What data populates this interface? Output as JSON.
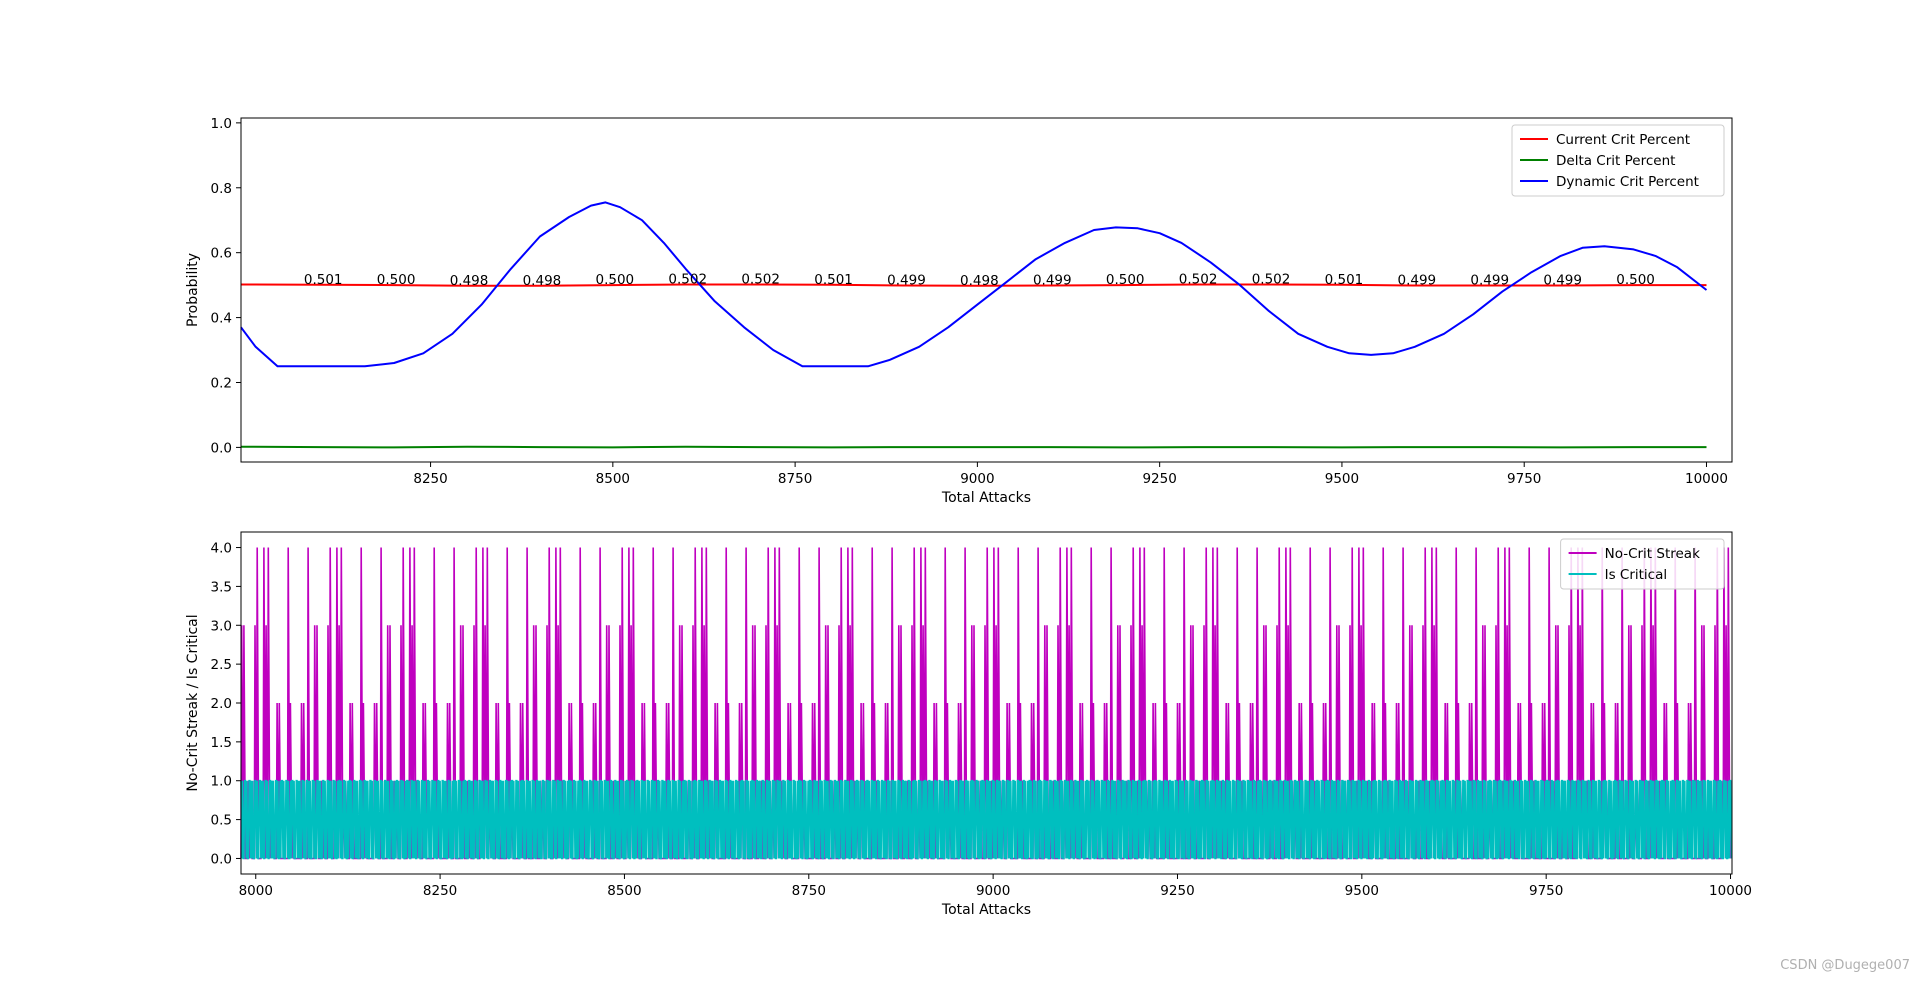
{
  "watermark": "CSDN @Dugege007",
  "chart_data": [
    {
      "type": "line",
      "title": "",
      "xlabel": "Total Attacks",
      "ylabel": "Probability",
      "xlim": [
        7990,
        10035
      ],
      "ylim": [
        -0.045,
        1.015
      ],
      "xticks": [
        8250,
        8500,
        8750,
        9000,
        9250,
        9500,
        9750,
        10000
      ],
      "xtick_labels": [
        "8250",
        "8500",
        "8750",
        "9000",
        "9250",
        "9500",
        "9750",
        "10000"
      ],
      "yticks": [
        0.0,
        0.2,
        0.4,
        0.6,
        0.8,
        1.0
      ],
      "ytick_labels": [
        "0.0",
        "0.2",
        "0.4",
        "0.6",
        "0.8",
        "1.0"
      ],
      "legend_position": "top-right",
      "series": [
        {
          "name": "Current Crit Percent",
          "color": "#ff0000",
          "x": [
            7990,
            8100,
            8200,
            8300,
            8400,
            8500,
            8600,
            8700,
            8800,
            8900,
            9000,
            9100,
            9200,
            9300,
            9400,
            9500,
            9600,
            9700,
            9800,
            9900,
            10000
          ],
          "y": [
            0.502,
            0.501,
            0.5,
            0.498,
            0.498,
            0.5,
            0.502,
            0.502,
            0.501,
            0.499,
            0.498,
            0.499,
            0.5,
            0.502,
            0.502,
            0.501,
            0.499,
            0.499,
            0.499,
            0.5,
            0.5
          ]
        },
        {
          "name": "Delta Crit Percent",
          "color": "#008000",
          "x": [
            7990,
            8100,
            8200,
            8300,
            8400,
            8500,
            8600,
            8700,
            8800,
            8900,
            9000,
            9100,
            9200,
            9300,
            9400,
            9500,
            9600,
            9700,
            9800,
            9900,
            10000
          ],
          "y": [
            0.002,
            0.001,
            0.0,
            0.002,
            0.001,
            0.0,
            0.002,
            0.001,
            0.0,
            0.001,
            0.001,
            0.001,
            0.0,
            0.001,
            0.001,
            0.0,
            0.001,
            0.001,
            0.0,
            0.001,
            0.001
          ]
        },
        {
          "name": "Dynamic Crit Percent",
          "color": "#0000ff",
          "x": [
            7990,
            8010,
            8040,
            8080,
            8120,
            8160,
            8200,
            8240,
            8280,
            8320,
            8360,
            8400,
            8440,
            8470,
            8490,
            8510,
            8540,
            8570,
            8600,
            8640,
            8680,
            8720,
            8760,
            8800,
            8850,
            8880,
            8920,
            8960,
            9000,
            9040,
            9080,
            9120,
            9160,
            9190,
            9220,
            9250,
            9280,
            9320,
            9360,
            9400,
            9440,
            9480,
            9510,
            9540,
            9570,
            9600,
            9640,
            9680,
            9720,
            9760,
            9800,
            9830,
            9860,
            9900,
            9930,
            9960,
            10000
          ],
          "y": [
            0.37,
            0.31,
            0.25,
            0.25,
            0.25,
            0.25,
            0.26,
            0.29,
            0.35,
            0.44,
            0.55,
            0.65,
            0.71,
            0.745,
            0.755,
            0.74,
            0.7,
            0.63,
            0.55,
            0.45,
            0.37,
            0.3,
            0.25,
            0.25,
            0.25,
            0.27,
            0.31,
            0.37,
            0.44,
            0.51,
            0.58,
            0.63,
            0.67,
            0.678,
            0.675,
            0.66,
            0.63,
            0.57,
            0.5,
            0.42,
            0.35,
            0.31,
            0.29,
            0.285,
            0.29,
            0.31,
            0.35,
            0.41,
            0.48,
            0.54,
            0.59,
            0.615,
            0.62,
            0.61,
            0.59,
            0.555,
            0.485
          ]
        }
      ],
      "annotations": [
        {
          "x": 8100,
          "y": 0.501,
          "text": "0.501"
        },
        {
          "x": 8200,
          "y": 0.5,
          "text": "0.500"
        },
        {
          "x": 8300,
          "y": 0.498,
          "text": "0.498"
        },
        {
          "x": 8400,
          "y": 0.498,
          "text": "0.498"
        },
        {
          "x": 8500,
          "y": 0.5,
          "text": "0.500"
        },
        {
          "x": 8600,
          "y": 0.502,
          "text": "0.502"
        },
        {
          "x": 8700,
          "y": 0.502,
          "text": "0.502"
        },
        {
          "x": 8800,
          "y": 0.501,
          "text": "0.501"
        },
        {
          "x": 8900,
          "y": 0.499,
          "text": "0.499"
        },
        {
          "x": 9000,
          "y": 0.498,
          "text": "0.498"
        },
        {
          "x": 9100,
          "y": 0.499,
          "text": "0.499"
        },
        {
          "x": 9200,
          "y": 0.5,
          "text": "0.500"
        },
        {
          "x": 9300,
          "y": 0.502,
          "text": "0.502"
        },
        {
          "x": 9400,
          "y": 0.502,
          "text": "0.502"
        },
        {
          "x": 9500,
          "y": 0.501,
          "text": "0.501"
        },
        {
          "x": 9600,
          "y": 0.499,
          "text": "0.499"
        },
        {
          "x": 9700,
          "y": 0.499,
          "text": "0.499"
        },
        {
          "x": 9800,
          "y": 0.499,
          "text": "0.499"
        },
        {
          "x": 9900,
          "y": 0.5,
          "text": "0.500"
        }
      ]
    },
    {
      "type": "line",
      "title": "",
      "xlabel": "Total Attacks",
      "ylabel": "No-Crit Streak / Is Critical",
      "xlim": [
        7980,
        10002
      ],
      "ylim": [
        -0.2,
        4.2
      ],
      "xticks": [
        8000,
        8250,
        8500,
        8750,
        9000,
        9250,
        9500,
        9750,
        10000
      ],
      "xtick_labels": [
        "8000",
        "8250",
        "8500",
        "8750",
        "9000",
        "9250",
        "9500",
        "9750",
        "10000"
      ],
      "yticks": [
        0.0,
        0.5,
        1.0,
        1.5,
        2.0,
        2.5,
        3.0,
        3.5,
        4.0
      ],
      "ytick_labels": [
        "0.0",
        "0.5",
        "1.0",
        "1.5",
        "2.0",
        "2.5",
        "3.0",
        "3.5",
        "4.0"
      ],
      "legend_position": "top-right",
      "series": [
        {
          "name": "No-Crit Streak",
          "color": "#bf00bf",
          "x_range": [
            7980,
            10000
          ],
          "streak_cycle": [
            0,
            2,
            4,
            0,
            1,
            3,
            0,
            0,
            4,
            2,
            1,
            0,
            3,
            4,
            0,
            2,
            0,
            1,
            4,
            3,
            0,
            2,
            1,
            0,
            0,
            3,
            4,
            1,
            0,
            2
          ]
        },
        {
          "name": "Is Critical",
          "color": "#00bfbf",
          "x_range": [
            7980,
            10000
          ],
          "values": [
            0,
            1
          ]
        }
      ]
    }
  ]
}
